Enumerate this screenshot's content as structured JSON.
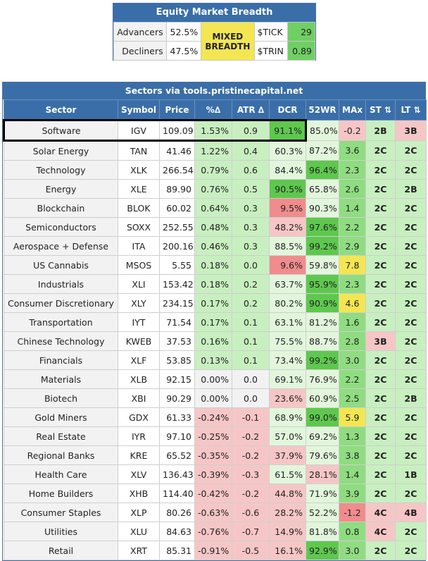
{
  "breadth": {
    "title": "Equity Market Breadth",
    "advancers_label": "Advancers",
    "advancers_value": "52.5%",
    "decliners_label": "Decliners",
    "decliners_value": "47.5%",
    "status_line1": "MIXED",
    "status_line2": "BREADTH",
    "status_color": "#f3e652",
    "tick_label": "$TICK",
    "tick_value": "29",
    "trin_label": "$TRIN",
    "trin_value": "0.89",
    "tick_color": "#6fcf63"
  },
  "sectors": {
    "title": "Sectors via tools.pristinecapital.net",
    "headers": [
      "Sector",
      "Symbol",
      "Price",
      "%∆",
      "ATR ∆",
      "DCR",
      "52WR",
      "MAx",
      "ST ⇅",
      "LT ⇅"
    ],
    "highlighted_row": 0,
    "colors": {
      "strong_green": "#5ec84e",
      "green": "#8fdc81",
      "light_green": "#c8efc0",
      "pale_green": "#e2f6dc",
      "neutral": "#f2f2f2",
      "white": "#ffffff",
      "pink": "#f6c6c6",
      "red": "#f08c8c",
      "yellow": "#f3e652"
    },
    "rows": [
      {
        "sector": "Software",
        "symbol": "IGV",
        "price": "109.09",
        "pct": "1.53%",
        "atr": "0.9",
        "dcr": "91.1%",
        "wr52": "85.0%",
        "max": "-0.2",
        "st": "2B",
        "lt": "3B",
        "c": {
          "pct": "light_green",
          "atr": "light_green",
          "dcr": "strong_green",
          "wr52": "pale_green",
          "max": "pink",
          "st": "light_green",
          "lt": "pink"
        }
      },
      {
        "sector": "Solar Energy",
        "symbol": "TAN",
        "price": "41.46",
        "pct": "1.22%",
        "atr": "0.4",
        "dcr": "60.3%",
        "wr52": "87.2%",
        "max": "3.6",
        "st": "2C",
        "lt": "2C",
        "c": {
          "pct": "light_green",
          "atr": "light_green",
          "dcr": "pale_green",
          "wr52": "pale_green",
          "max": "green",
          "st": "light_green",
          "lt": "light_green"
        }
      },
      {
        "sector": "Technology",
        "symbol": "XLK",
        "price": "266.54",
        "pct": "0.79%",
        "atr": "0.6",
        "dcr": "84.4%",
        "wr52": "96.4%",
        "max": "2.3",
        "st": "2C",
        "lt": "2C",
        "c": {
          "pct": "light_green",
          "atr": "light_green",
          "dcr": "pale_green",
          "wr52": "strong_green",
          "max": "green",
          "st": "light_green",
          "lt": "light_green"
        }
      },
      {
        "sector": "Energy",
        "symbol": "XLE",
        "price": "89.90",
        "pct": "0.76%",
        "atr": "0.5",
        "dcr": "90.5%",
        "wr52": "65.8%",
        "max": "2.6",
        "st": "2C",
        "lt": "2B",
        "c": {
          "pct": "light_green",
          "atr": "light_green",
          "dcr": "strong_green",
          "wr52": "pale_green",
          "max": "green",
          "st": "light_green",
          "lt": "light_green"
        }
      },
      {
        "sector": "Blockchain",
        "symbol": "BLOK",
        "price": "60.02",
        "pct": "0.64%",
        "atr": "0.3",
        "dcr": "9.5%",
        "wr52": "90.3%",
        "max": "1.4",
        "st": "2C",
        "lt": "2C",
        "c": {
          "pct": "light_green",
          "atr": "light_green",
          "dcr": "red",
          "wr52": "pale_green",
          "max": "green",
          "st": "light_green",
          "lt": "light_green"
        }
      },
      {
        "sector": "Semiconductors",
        "symbol": "SOXX",
        "price": "252.55",
        "pct": "0.48%",
        "atr": "0.3",
        "dcr": "48.2%",
        "wr52": "97.6%",
        "max": "2.2",
        "st": "2C",
        "lt": "2C",
        "c": {
          "pct": "light_green",
          "atr": "light_green",
          "dcr": "pink",
          "wr52": "strong_green",
          "max": "green",
          "st": "light_green",
          "lt": "light_green"
        }
      },
      {
        "sector": "Aerospace + Defense",
        "symbol": "ITA",
        "price": "200.16",
        "pct": "0.46%",
        "atr": "0.3",
        "dcr": "88.5%",
        "wr52": "99.2%",
        "max": "2.9",
        "st": "2C",
        "lt": "2C",
        "c": {
          "pct": "light_green",
          "atr": "light_green",
          "dcr": "pale_green",
          "wr52": "strong_green",
          "max": "green",
          "st": "light_green",
          "lt": "light_green"
        }
      },
      {
        "sector": "US Cannabis",
        "symbol": "MSOS",
        "price": "5.55",
        "pct": "0.18%",
        "atr": "0.0",
        "dcr": "9.6%",
        "wr52": "59.8%",
        "max": "7.8",
        "st": "2C",
        "lt": "2C",
        "c": {
          "pct": "light_green",
          "atr": "light_green",
          "dcr": "red",
          "wr52": "pale_green",
          "max": "yellow",
          "st": "light_green",
          "lt": "light_green"
        }
      },
      {
        "sector": "Industrials",
        "symbol": "XLI",
        "price": "153.42",
        "pct": "0.18%",
        "atr": "0.2",
        "dcr": "63.7%",
        "wr52": "95.9%",
        "max": "2.3",
        "st": "2C",
        "lt": "2C",
        "c": {
          "pct": "light_green",
          "atr": "light_green",
          "dcr": "pale_green",
          "wr52": "strong_green",
          "max": "green",
          "st": "light_green",
          "lt": "light_green"
        }
      },
      {
        "sector": "Consumer Discretionary",
        "symbol": "XLY",
        "price": "234.15",
        "pct": "0.17%",
        "atr": "0.2",
        "dcr": "80.2%",
        "wr52": "90.9%",
        "max": "4.6",
        "st": "2C",
        "lt": "2C",
        "c": {
          "pct": "light_green",
          "atr": "light_green",
          "dcr": "pale_green",
          "wr52": "strong_green",
          "max": "yellow",
          "st": "light_green",
          "lt": "light_green"
        }
      },
      {
        "sector": "Transportation",
        "symbol": "IYT",
        "price": "71.54",
        "pct": "0.17%",
        "atr": "0.1",
        "dcr": "63.1%",
        "wr52": "81.2%",
        "max": "1.6",
        "st": "2C",
        "lt": "2C",
        "c": {
          "pct": "light_green",
          "atr": "light_green",
          "dcr": "pale_green",
          "wr52": "pale_green",
          "max": "green",
          "st": "light_green",
          "lt": "light_green"
        }
      },
      {
        "sector": "Chinese Technology",
        "symbol": "KWEB",
        "price": "37.53",
        "pct": "0.16%",
        "atr": "0.1",
        "dcr": "75.5%",
        "wr52": "88.7%",
        "max": "2.8",
        "st": "3B",
        "lt": "2C",
        "c": {
          "pct": "light_green",
          "atr": "light_green",
          "dcr": "pale_green",
          "wr52": "pale_green",
          "max": "green",
          "st": "pink",
          "lt": "light_green"
        }
      },
      {
        "sector": "Financials",
        "symbol": "XLF",
        "price": "53.85",
        "pct": "0.13%",
        "atr": "0.1",
        "dcr": "73.4%",
        "wr52": "99.2%",
        "max": "3.0",
        "st": "2C",
        "lt": "2C",
        "c": {
          "pct": "light_green",
          "atr": "light_green",
          "dcr": "pale_green",
          "wr52": "strong_green",
          "max": "green",
          "st": "light_green",
          "lt": "light_green"
        }
      },
      {
        "sector": "Materials",
        "symbol": "XLB",
        "price": "92.15",
        "pct": "0.00%",
        "atr": "0.0",
        "dcr": "69.1%",
        "wr52": "76.9%",
        "max": "2.2",
        "st": "2C",
        "lt": "2C",
        "c": {
          "pct": "neutral",
          "atr": "neutral",
          "dcr": "pale_green",
          "wr52": "pale_green",
          "max": "green",
          "st": "light_green",
          "lt": "light_green"
        }
      },
      {
        "sector": "Biotech",
        "symbol": "XBI",
        "price": "90.29",
        "pct": "0.00%",
        "atr": "0.0",
        "dcr": "23.6%",
        "wr52": "60.9%",
        "max": "2.5",
        "st": "2C",
        "lt": "2B",
        "c": {
          "pct": "neutral",
          "atr": "neutral",
          "dcr": "pink",
          "wr52": "pale_green",
          "max": "green",
          "st": "light_green",
          "lt": "light_green"
        }
      },
      {
        "sector": "Gold Miners",
        "symbol": "GDX",
        "price": "61.33",
        "pct": "-0.24%",
        "atr": "-0.1",
        "dcr": "68.9%",
        "wr52": "99.0%",
        "max": "5.9",
        "st": "2C",
        "lt": "2C",
        "c": {
          "pct": "pink",
          "atr": "pink",
          "dcr": "pale_green",
          "wr52": "strong_green",
          "max": "yellow",
          "st": "light_green",
          "lt": "light_green"
        }
      },
      {
        "sector": "Real Estate",
        "symbol": "IYR",
        "price": "97.10",
        "pct": "-0.25%",
        "atr": "-0.2",
        "dcr": "57.0%",
        "wr52": "69.2%",
        "max": "1.3",
        "st": "2C",
        "lt": "2C",
        "c": {
          "pct": "pink",
          "atr": "pink",
          "dcr": "pale_green",
          "wr52": "pale_green",
          "max": "green",
          "st": "light_green",
          "lt": "light_green"
        }
      },
      {
        "sector": "Regional Banks",
        "symbol": "KRE",
        "price": "65.52",
        "pct": "-0.35%",
        "atr": "-0.2",
        "dcr": "37.9%",
        "wr52": "79.6%",
        "max": "3.8",
        "st": "2C",
        "lt": "2C",
        "c": {
          "pct": "pink",
          "atr": "pink",
          "dcr": "pink",
          "wr52": "pale_green",
          "max": "green",
          "st": "light_green",
          "lt": "light_green"
        }
      },
      {
        "sector": "Health Care",
        "symbol": "XLV",
        "price": "136.43",
        "pct": "-0.39%",
        "atr": "-0.3",
        "dcr": "61.5%",
        "wr52": "28.1%",
        "max": "1.4",
        "st": "2C",
        "lt": "1B",
        "c": {
          "pct": "pink",
          "atr": "pink",
          "dcr": "pale_green",
          "wr52": "pink",
          "max": "green",
          "st": "light_green",
          "lt": "light_green"
        }
      },
      {
        "sector": "Home Builders",
        "symbol": "XHB",
        "price": "114.40",
        "pct": "-0.42%",
        "atr": "-0.2",
        "dcr": "44.8%",
        "wr52": "71.9%",
        "max": "3.9",
        "st": "2C",
        "lt": "2C",
        "c": {
          "pct": "pink",
          "atr": "pink",
          "dcr": "pink",
          "wr52": "pale_green",
          "max": "green",
          "st": "light_green",
          "lt": "light_green"
        }
      },
      {
        "sector": "Consumer Staples",
        "symbol": "XLP",
        "price": "80.26",
        "pct": "-0.63%",
        "atr": "-0.6",
        "dcr": "28.2%",
        "wr52": "52.2%",
        "max": "-1.2",
        "st": "4C",
        "lt": "4B",
        "c": {
          "pct": "pink",
          "atr": "pink",
          "dcr": "pink",
          "wr52": "pale_green",
          "max": "red",
          "st": "pink",
          "lt": "pink"
        }
      },
      {
        "sector": "Utilities",
        "symbol": "XLU",
        "price": "84.63",
        "pct": "-0.76%",
        "atr": "-0.7",
        "dcr": "14.9%",
        "wr52": "81.8%",
        "max": "0.8",
        "st": "4C",
        "lt": "2C",
        "c": {
          "pct": "pink",
          "atr": "pink",
          "dcr": "pink",
          "wr52": "pale_green",
          "max": "green",
          "st": "pink",
          "lt": "light_green"
        }
      },
      {
        "sector": "Retail",
        "symbol": "XRT",
        "price": "85.31",
        "pct": "-0.91%",
        "atr": "-0.5",
        "dcr": "16.1%",
        "wr52": "92.9%",
        "max": "3.0",
        "st": "2C",
        "lt": "2C",
        "c": {
          "pct": "pink",
          "atr": "pink",
          "dcr": "pink",
          "wr52": "strong_green",
          "max": "green",
          "st": "light_green",
          "lt": "light_green"
        }
      }
    ]
  }
}
